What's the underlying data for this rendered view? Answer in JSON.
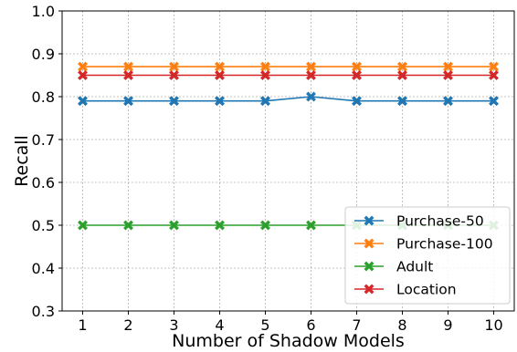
{
  "chart_data": {
    "type": "line",
    "title": "",
    "xlabel": "Number of Shadow Models",
    "ylabel": "Recall",
    "x": [
      1,
      2,
      3,
      4,
      5,
      6,
      7,
      8,
      9,
      10
    ],
    "xlim": [
      0.55,
      10.45
    ],
    "ylim": [
      0.3,
      1.0
    ],
    "yticks": [
      "0.3",
      "0.4",
      "0.5",
      "0.6",
      "0.7",
      "0.8",
      "0.9",
      "1.0"
    ],
    "xticks": [
      "1",
      "2",
      "3",
      "4",
      "5",
      "6",
      "7",
      "8",
      "9",
      "10"
    ],
    "grid": true,
    "legend_position": "bottom-right",
    "marker": "x",
    "series": [
      {
        "name": "Purchase-50",
        "color": "#1f77b4",
        "values": [
          0.79,
          0.79,
          0.79,
          0.79,
          0.79,
          0.8,
          0.79,
          0.79,
          0.79,
          0.79
        ]
      },
      {
        "name": "Purchase-100",
        "color": "#ff7f0e",
        "values": [
          0.87,
          0.87,
          0.87,
          0.87,
          0.87,
          0.87,
          0.87,
          0.87,
          0.87,
          0.87
        ]
      },
      {
        "name": "Adult",
        "color": "#2ca02c",
        "values": [
          0.5,
          0.5,
          0.5,
          0.5,
          0.5,
          0.5,
          0.5,
          0.5,
          0.5,
          0.5
        ]
      },
      {
        "name": "Location",
        "color": "#d62728",
        "values": [
          0.85,
          0.85,
          0.85,
          0.85,
          0.85,
          0.85,
          0.85,
          0.85,
          0.85,
          0.85
        ]
      }
    ]
  }
}
